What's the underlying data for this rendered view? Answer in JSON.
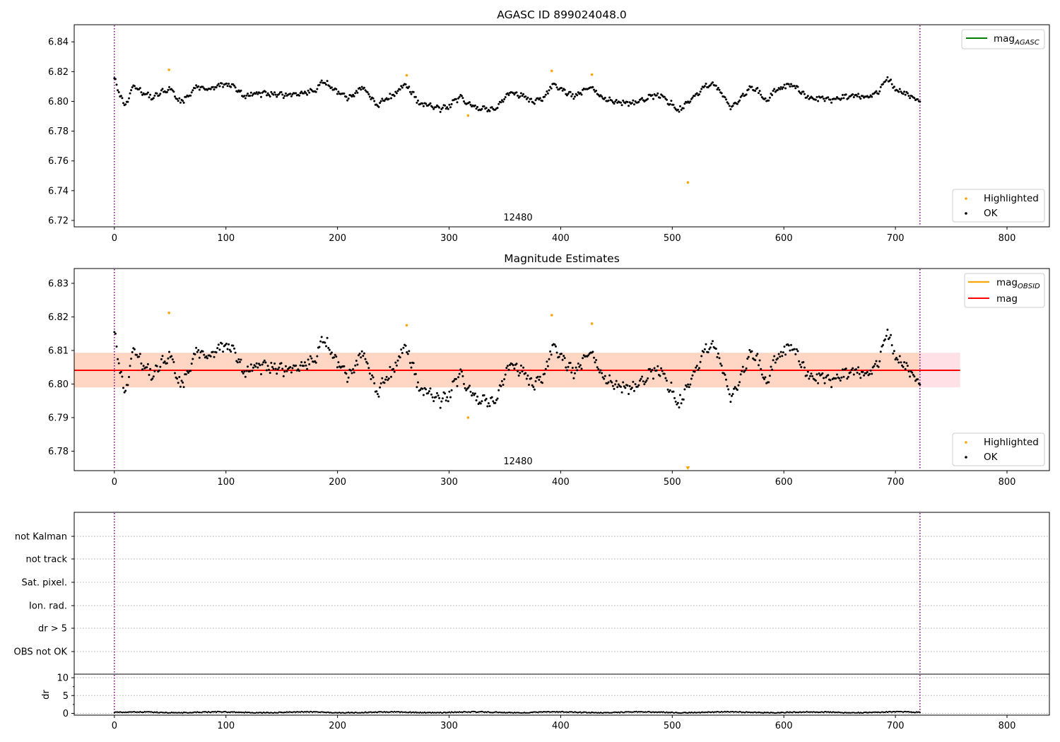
{
  "chart_data": [
    {
      "type": "scatter",
      "title": "AGASC ID 899024048.0",
      "xlim": [
        -36,
        838
      ],
      "ylim": [
        6.7157,
        6.8515
      ],
      "xticks": [
        0,
        100,
        200,
        300,
        400,
        500,
        600,
        700,
        800
      ],
      "yticks": [
        6.72,
        6.74,
        6.76,
        6.78,
        6.8,
        6.82,
        6.84
      ],
      "obs_boundaries": [
        0,
        722
      ],
      "obsid_label": {
        "x": 361,
        "text": "12480"
      },
      "legend_lines": [
        {
          "label": "mag",
          "sub": "AGASC",
          "color": "#008000"
        }
      ],
      "legend_points": [
        {
          "label": "Highlighted",
          "color": "#ffa500"
        },
        {
          "label": "OK",
          "color": "#000000"
        }
      ],
      "highlighted": [
        [
          49,
          6.8212
        ],
        [
          262,
          6.8175
        ],
        [
          317,
          6.7905
        ],
        [
          392,
          6.8205
        ],
        [
          428,
          6.818
        ],
        [
          514,
          6.7455
        ]
      ],
      "ok_series": {
        "n": 720,
        "x_start": 0,
        "x_end": 722,
        "base": 6.804
      },
      "anchors": [
        [
          0,
          6.817
        ],
        [
          4,
          6.806
        ],
        [
          10,
          6.797
        ],
        [
          18,
          6.811
        ],
        [
          25,
          6.806
        ],
        [
          33,
          6.803
        ],
        [
          42,
          6.806
        ],
        [
          50,
          6.809
        ],
        [
          58,
          6.8
        ],
        [
          66,
          6.802
        ],
        [
          74,
          6.81
        ],
        [
          85,
          6.809
        ],
        [
          100,
          6.812
        ],
        [
          108,
          6.809
        ],
        [
          115,
          6.804
        ],
        [
          125,
          6.805
        ],
        [
          140,
          6.805
        ],
        [
          155,
          6.804
        ],
        [
          170,
          6.806
        ],
        [
          180,
          6.807
        ],
        [
          187,
          6.814
        ],
        [
          195,
          6.809
        ],
        [
          202,
          6.805
        ],
        [
          210,
          6.802
        ],
        [
          222,
          6.809
        ],
        [
          228,
          6.806
        ],
        [
          235,
          6.797
        ],
        [
          242,
          6.801
        ],
        [
          250,
          6.804
        ],
        [
          258,
          6.811
        ],
        [
          264,
          6.809
        ],
        [
          272,
          6.8
        ],
        [
          282,
          6.797
        ],
        [
          292,
          6.795
        ],
        [
          300,
          6.797
        ],
        [
          310,
          6.803
        ],
        [
          320,
          6.797
        ],
        [
          330,
          6.795
        ],
        [
          342,
          6.795
        ],
        [
          355,
          6.806
        ],
        [
          365,
          6.804
        ],
        [
          375,
          6.8
        ],
        [
          385,
          6.802
        ],
        [
          393,
          6.812
        ],
        [
          400,
          6.809
        ],
        [
          407,
          6.805
        ],
        [
          413,
          6.803
        ],
        [
          425,
          6.81
        ],
        [
          432,
          6.806
        ],
        [
          440,
          6.802
        ],
        [
          452,
          6.799
        ],
        [
          465,
          6.799
        ],
        [
          480,
          6.803
        ],
        [
          490,
          6.804
        ],
        [
          498,
          6.799
        ],
        [
          506,
          6.794
        ],
        [
          514,
          6.799
        ],
        [
          522,
          6.804
        ],
        [
          530,
          6.811
        ],
        [
          537,
          6.812
        ],
        [
          545,
          6.804
        ],
        [
          553,
          6.796
        ],
        [
          562,
          6.802
        ],
        [
          570,
          6.81
        ],
        [
          577,
          6.807
        ],
        [
          584,
          6.8
        ],
        [
          592,
          6.807
        ],
        [
          600,
          6.81
        ],
        [
          607,
          6.811
        ],
        [
          612,
          6.809
        ],
        [
          620,
          6.803
        ],
        [
          630,
          6.802
        ],
        [
          645,
          6.801
        ],
        [
          660,
          6.804
        ],
        [
          675,
          6.802
        ],
        [
          685,
          6.806
        ],
        [
          693,
          6.816
        ],
        [
          700,
          6.808
        ],
        [
          710,
          6.805
        ],
        [
          716,
          6.802
        ],
        [
          722,
          6.8
        ]
      ]
    },
    {
      "type": "scatter",
      "title": "Magnitude Estimates",
      "xlim": [
        -36,
        838
      ],
      "ylim": [
        6.7742,
        6.8344
      ],
      "xticks": [
        0,
        100,
        200,
        300,
        400,
        500,
        600,
        700,
        800
      ],
      "yticks": [
        6.78,
        6.79,
        6.8,
        6.81,
        6.82,
        6.83
      ],
      "obs_boundaries": [
        0,
        722
      ],
      "obsid_label": {
        "x": 361,
        "text": "12480"
      },
      "mag": 6.8041,
      "band": {
        "x0": -36,
        "x1": 758,
        "y0": 6.799,
        "y1": 6.8093,
        "outer_color": "#ffe0e6",
        "inner_color": "#ffd6c4"
      },
      "obsid_line": {
        "x0": -36,
        "x1": 758,
        "y": 6.8041,
        "color": "#ffa500"
      },
      "legend_lines": [
        {
          "label": "mag",
          "sub": "OBSID",
          "color": "#ffa500"
        },
        {
          "label": "mag",
          "sub": "",
          "color": "#ff0000"
        }
      ],
      "legend_points": [
        {
          "label": "Highlighted",
          "color": "#ffa500"
        },
        {
          "label": "OK",
          "color": "#000000"
        }
      ],
      "highlighted": [
        [
          49,
          6.8212
        ],
        [
          262,
          6.8175
        ],
        [
          317,
          6.79
        ],
        [
          392,
          6.8205
        ],
        [
          428,
          6.818
        ]
      ],
      "offscale_marker": {
        "x": 514,
        "label": "below range"
      }
    },
    {
      "type": "scatter",
      "title": "",
      "xlim": [
        -36,
        838
      ],
      "flag_rows": [
        "not Kalman",
        "not track",
        "Sat. pixel.",
        "Ion. rad.",
        "dr > 5",
        "OBS not OK"
      ],
      "obs_boundaries": [
        0,
        722
      ]
    },
    {
      "type": "scatter",
      "title": "",
      "xlim": [
        -36,
        838
      ],
      "ylim": [
        -0.5,
        11
      ],
      "yticks": [
        0,
        5,
        10
      ],
      "ylabel": "dr",
      "xticks": [
        0,
        100,
        200,
        300,
        400,
        500,
        600,
        700,
        800
      ],
      "obs_boundaries": [
        0,
        722
      ],
      "dr_level": 0.3
    }
  ]
}
